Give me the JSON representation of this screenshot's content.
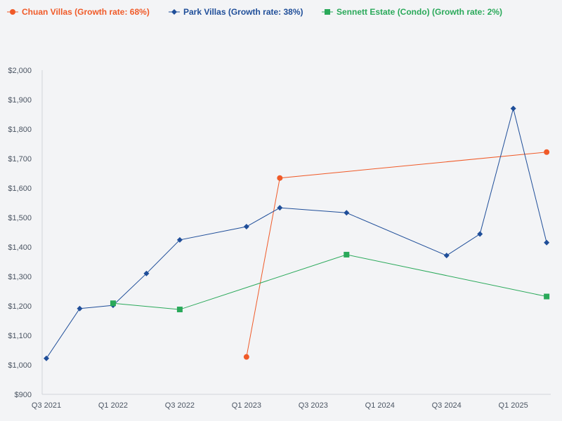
{
  "chart_data": {
    "type": "line",
    "title": "",
    "xlabel": "",
    "ylabel": "",
    "ylim": [
      900,
      2000
    ],
    "y_tick_labels": [
      "$900",
      "$1,000",
      "$1,100",
      "$1,200",
      "$1,300",
      "$1,400",
      "$1,500",
      "$1,600",
      "$1,700",
      "$1,800",
      "$1,900",
      "$2,000"
    ],
    "y_ticks": [
      900,
      1000,
      1100,
      1200,
      1300,
      1400,
      1500,
      1600,
      1700,
      1800,
      1900,
      2000
    ],
    "xlim": [
      0,
      15.25
    ],
    "x_tick_labels": [
      "Q3 2021",
      "Q1 2022",
      "Q3 2022",
      "Q1 2023",
      "Q3 2023",
      "Q1 2024",
      "Q3 2024",
      "Q1 2025"
    ],
    "x_ticks": [
      0,
      2,
      4,
      6,
      8,
      10,
      12,
      14
    ],
    "legend_position": "top-left",
    "series": [
      {
        "name": "Chuan Villas (Growth rate: 68%)",
        "color": "#f05a28",
        "marker": "circle",
        "x": [
          6,
          7,
          15
        ],
        "values": [
          1027,
          1634,
          1722
        ]
      },
      {
        "name": "Park Villas (Growth rate: 38%)",
        "color": "#1f4e99",
        "marker": "diamond",
        "x": [
          0,
          1,
          2,
          3,
          4,
          6,
          7,
          9,
          12,
          13,
          14,
          15
        ],
        "values": [
          1022,
          1191,
          1202,
          1310,
          1424,
          1469,
          1533,
          1516,
          1371,
          1444,
          1870,
          1415
        ]
      },
      {
        "name": "Sennett Estate (Condo) (Growth rate: 2%)",
        "color": "#2aa95a",
        "marker": "square",
        "x": [
          2,
          4,
          9,
          15
        ],
        "values": [
          1209,
          1188,
          1374,
          1232
        ]
      }
    ]
  }
}
